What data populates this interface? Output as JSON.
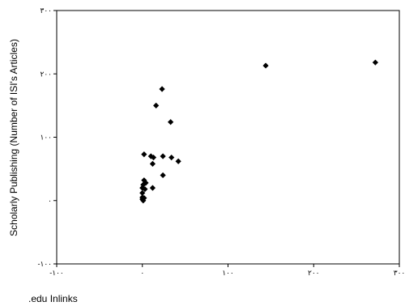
{
  "chart_data": {
    "type": "scatter",
    "title": "",
    "xlabel": ".edu Inlinks",
    "ylabel": "Scholarly Publishing (Number of ISI's Articles)",
    "xlim": [
      -100,
      300
    ],
    "ylim": [
      -100,
      300
    ],
    "grid": false,
    "x_ticks": [
      {
        "value": -100,
        "label": "-۱۰۰"
      },
      {
        "value": 0,
        "label": "۰"
      },
      {
        "value": 100,
        "label": "۱۰۰"
      },
      {
        "value": 200,
        "label": "۲۰۰"
      },
      {
        "value": 300,
        "label": "۳۰۰"
      }
    ],
    "y_ticks": [
      {
        "value": -100,
        "label": "-۱۰۰"
      },
      {
        "value": 0,
        "label": "۰"
      },
      {
        "value": 100,
        "label": "۱۰۰"
      },
      {
        "value": 200,
        "label": "۲۰۰"
      },
      {
        "value": 300,
        "label": "۳۰۰"
      }
    ],
    "points": [
      {
        "x": 144,
        "y": 213
      },
      {
        "x": 272,
        "y": 218
      },
      {
        "x": 23,
        "y": 176
      },
      {
        "x": 16,
        "y": 150
      },
      {
        "x": 33,
        "y": 124
      },
      {
        "x": 2,
        "y": 73
      },
      {
        "x": 10,
        "y": 70
      },
      {
        "x": 13,
        "y": 68
      },
      {
        "x": 24,
        "y": 70
      },
      {
        "x": 34,
        "y": 68
      },
      {
        "x": 42,
        "y": 62
      },
      {
        "x": 12,
        "y": 58
      },
      {
        "x": 24,
        "y": 40
      },
      {
        "x": 2,
        "y": 32
      },
      {
        "x": 4,
        "y": 28
      },
      {
        "x": 12,
        "y": 20
      },
      {
        "x": 1,
        "y": 25
      },
      {
        "x": 0,
        "y": 20
      },
      {
        "x": 3,
        "y": 18
      },
      {
        "x": 0,
        "y": 12
      },
      {
        "x": 0,
        "y": 5
      },
      {
        "x": 2,
        "y": 4
      },
      {
        "x": 0,
        "y": 2
      },
      {
        "x": 1,
        "y": 0
      }
    ]
  }
}
